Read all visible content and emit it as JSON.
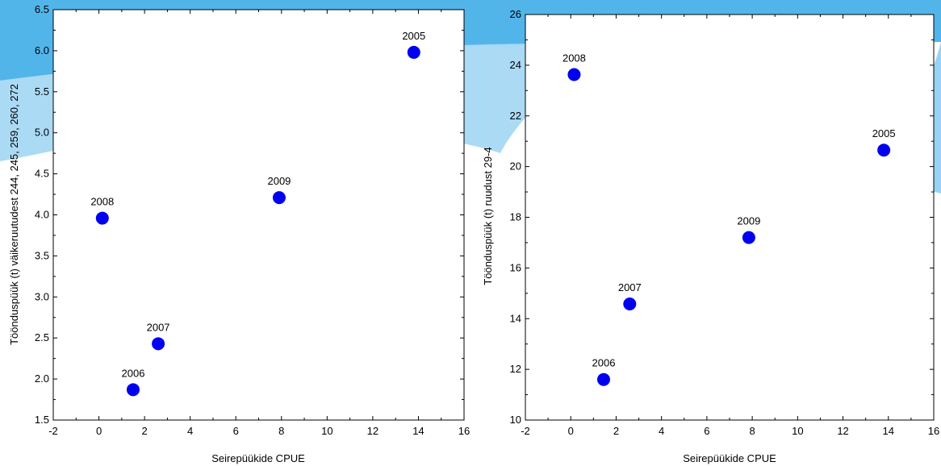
{
  "chart_data": [
    {
      "type": "scatter",
      "xlabel": "Seirepüükide CPUE",
      "ylabel": "Töönduspüük (t) väikeruutudest 244, 245, 259, 260, 272",
      "xlim": [
        -2,
        16
      ],
      "ylim": [
        1.5,
        6.5
      ],
      "xticks": [
        -2,
        0,
        2,
        4,
        6,
        8,
        10,
        12,
        14,
        16
      ],
      "yticks": [
        1.5,
        2.0,
        2.5,
        3.0,
        3.5,
        4.0,
        4.5,
        5.0,
        5.5,
        6.0,
        6.5
      ],
      "ytick_labels": [
        "1.5",
        "2.0",
        "2.5",
        "3.0",
        "3.5",
        "4.0",
        "4.5",
        "5.0",
        "5.5",
        "6.0",
        "6.5"
      ],
      "grid": false,
      "marker_color": "#0000ee",
      "points": [
        {
          "label": "2005",
          "x": 13.8,
          "y": 5.98
        },
        {
          "label": "2006",
          "x": 1.5,
          "y": 1.87
        },
        {
          "label": "2007",
          "x": 2.6,
          "y": 2.43
        },
        {
          "label": "2008",
          "x": 0.15,
          "y": 3.96
        },
        {
          "label": "2009",
          "x": 7.9,
          "y": 4.21
        }
      ]
    },
    {
      "type": "scatter",
      "xlabel": "Seirepüükide CPUE",
      "ylabel": "Töönduspüük (t) ruudust 29-4",
      "xlim": [
        -2,
        16
      ],
      "ylim": [
        10,
        26
      ],
      "xticks": [
        -2,
        0,
        2,
        4,
        6,
        8,
        10,
        12,
        14,
        16
      ],
      "yticks": [
        10,
        12,
        14,
        16,
        18,
        20,
        22,
        24,
        26
      ],
      "ytick_labels": [
        "10",
        "12",
        "14",
        "16",
        "18",
        "20",
        "22",
        "24",
        "26"
      ],
      "grid": false,
      "marker_color": "#0000ee",
      "points": [
        {
          "label": "2005",
          "x": 13.8,
          "y": 20.65
        },
        {
          "label": "2006",
          "x": 1.45,
          "y": 11.6
        },
        {
          "label": "2007",
          "x": 2.6,
          "y": 14.58
        },
        {
          "label": "2008",
          "x": 0.15,
          "y": 23.63
        },
        {
          "label": "2009",
          "x": 7.85,
          "y": 17.2
        }
      ]
    }
  ],
  "colors": {
    "background_accent": "#4fb3ea",
    "background_accent_light": "#9fd6f5",
    "marker": "#0000ee"
  }
}
